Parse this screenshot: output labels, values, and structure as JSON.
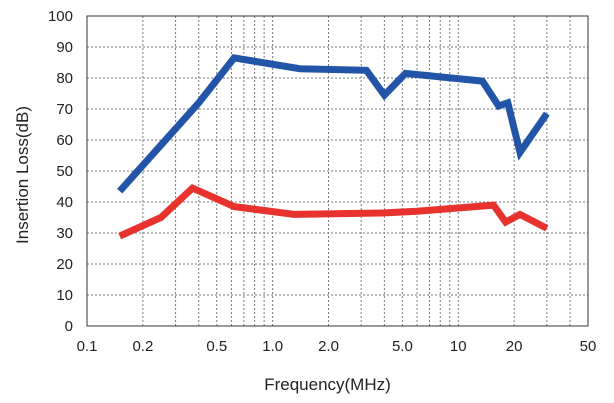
{
  "chart_data": {
    "type": "line",
    "title": "",
    "xlabel": "Frequency(MHz)",
    "ylabel": "Insertion Loss(dB)",
    "x_scale": "log",
    "xlim": [
      0.1,
      50
    ],
    "ylim": [
      0,
      100
    ],
    "x_ticks": [
      0.1,
      0.2,
      0.5,
      1.0,
      2.0,
      5.0,
      10,
      20,
      50
    ],
    "x_tick_labels": [
      "0.1",
      "0.2",
      "0.5",
      "1.0",
      "2.0",
      "5.0",
      "10",
      "20",
      "50"
    ],
    "y_ticks": [
      0,
      10,
      20,
      30,
      40,
      50,
      60,
      70,
      80,
      90,
      100
    ],
    "y_tick_labels": [
      "0",
      "10",
      "20",
      "30",
      "40",
      "50",
      "60",
      "70",
      "80",
      "90",
      "100"
    ],
    "grid": true,
    "grid_x": [
      0.1,
      0.2,
      0.3,
      0.4,
      0.5,
      0.6,
      0.7,
      0.8,
      0.9,
      1.0,
      2.0,
      3.0,
      4.0,
      5.0,
      6.0,
      7.0,
      8.0,
      9.0,
      10,
      20,
      30,
      40,
      50
    ],
    "series": [
      {
        "color": "#2255a8",
        "x": [
          0.15,
          0.4,
          0.62,
          1.4,
          3.2,
          4.0,
          5.2,
          13.5,
          16.5,
          18.5,
          21.5,
          30
        ],
        "y": [
          43.5,
          72,
          86.5,
          83,
          82.5,
          74.5,
          81.5,
          79,
          71,
          72,
          56,
          68.5
        ]
      },
      {
        "color": "#e8322e",
        "x": [
          0.15,
          0.25,
          0.37,
          0.62,
          1.3,
          4.0,
          6.0,
          15.5,
          18,
          21.5,
          30
        ],
        "y": [
          29,
          35,
          44.5,
          38.5,
          36,
          36.5,
          37,
          39,
          33.5,
          36,
          31.5
        ]
      }
    ]
  }
}
